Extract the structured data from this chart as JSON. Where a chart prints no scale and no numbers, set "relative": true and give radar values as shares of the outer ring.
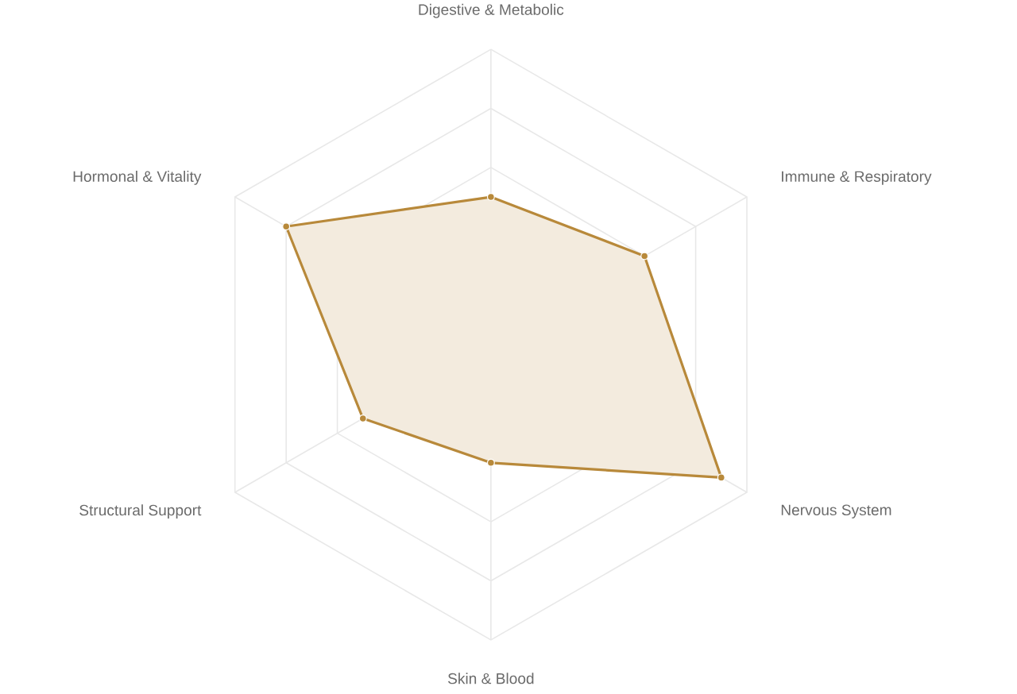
{
  "chart_data": {
    "type": "radar",
    "relative": true,
    "categories": [
      "Digestive & Metabolic",
      "Immune & Respiratory",
      "Nervous System",
      "Skin & Blood",
      "Structural Support",
      "Hormonal & Vitality"
    ],
    "series": [
      {
        "color": "#b8893a",
        "values": [
          0.5,
          0.6,
          0.9,
          0.4,
          0.5,
          0.8
        ]
      }
    ],
    "grid": true,
    "marker": "circle"
  }
}
